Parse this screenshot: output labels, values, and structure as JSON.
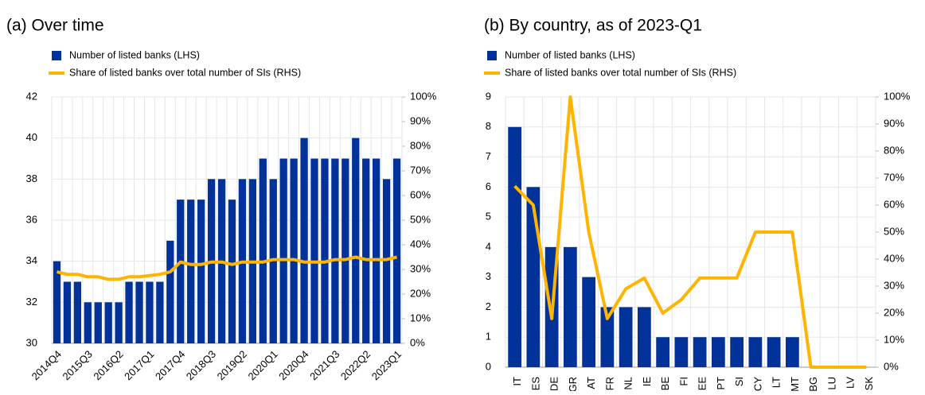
{
  "chart_data": [
    {
      "type": "combo",
      "title": "(a) Over time",
      "categories": [
        "2014Q4",
        null,
        null,
        "2015Q3",
        null,
        null,
        "2016Q2",
        null,
        null,
        "2017Q1",
        null,
        null,
        "2017Q4",
        null,
        null,
        "2018Q3",
        null,
        null,
        "2019Q2",
        null,
        null,
        "2020Q1",
        null,
        null,
        "2020Q4",
        null,
        null,
        "2021Q3",
        null,
        null,
        "2022Q2",
        null,
        null,
        "2023Q1"
      ],
      "series": [
        {
          "name": "Number of listed banks (LHS)",
          "type": "bar",
          "color": "#003299",
          "values": [
            34,
            33,
            33,
            32,
            32,
            32,
            32,
            33,
            33,
            33,
            33,
            35,
            37,
            37,
            37,
            38,
            38,
            37,
            38,
            38,
            39,
            38,
            39,
            39,
            40,
            39,
            39,
            39,
            39,
            40,
            39,
            39,
            38,
            39
          ]
        },
        {
          "name": "Share of listed banks over total number of SIs (RHS)",
          "type": "line",
          "axis": "y2",
          "color": "#FFB400",
          "values": [
            29,
            28,
            28,
            27,
            27,
            26,
            26,
            27,
            27,
            27.5,
            28,
            29,
            33,
            32,
            32,
            33,
            33,
            32,
            33,
            33,
            33,
            34,
            34,
            34,
            33,
            33,
            33,
            34,
            34,
            35,
            34,
            34,
            34,
            35
          ]
        }
      ],
      "ylim": [
        30,
        42
      ],
      "yticks": [
        30,
        32,
        34,
        36,
        38,
        40,
        42
      ],
      "y2lim": [
        0,
        100
      ],
      "y2ticks": [
        {
          "value": 0,
          "label": "0%"
        },
        {
          "value": 10,
          "label": "10%"
        },
        {
          "value": 20,
          "label": "20%"
        },
        {
          "value": 30,
          "label": "30%"
        },
        {
          "value": 40,
          "label": "40%"
        },
        {
          "value": 50,
          "label": "50%"
        },
        {
          "value": 60,
          "label": "60%"
        },
        {
          "value": 70,
          "label": "70%"
        },
        {
          "value": 80,
          "label": "80%"
        },
        {
          "value": 90,
          "label": "90%"
        },
        {
          "value": 100,
          "label": "100%"
        }
      ],
      "grid": true
    },
    {
      "type": "combo",
      "title": "(b) By country, as of 2023-Q1",
      "categories": [
        "IT",
        "ES",
        "DE",
        "GR",
        "AT",
        "FR",
        "NL",
        "IE",
        "BE",
        "FI",
        "EE",
        "PT",
        "SI",
        "CY",
        "LT",
        "MT",
        "BG",
        "LU",
        "LV",
        "SK"
      ],
      "series": [
        {
          "name": "Number of listed banks (LHS)",
          "type": "bar",
          "color": "#003299",
          "values": [
            8,
            6,
            4,
            4,
            3,
            2,
            2,
            2,
            1,
            1,
            1,
            1,
            1,
            1,
            1,
            1,
            0,
            0,
            0,
            0
          ]
        },
        {
          "name": "Share of listed banks over total number of SIs (RHS)",
          "type": "line",
          "axis": "y2",
          "color": "#FFB400",
          "values": [
            67,
            60,
            18,
            100,
            50,
            18,
            29,
            33,
            20,
            25,
            33,
            33,
            33,
            50,
            50,
            50,
            0,
            0,
            0,
            0
          ]
        }
      ],
      "ylim": [
        0,
        9
      ],
      "yticks": [
        0,
        1,
        2,
        3,
        4,
        5,
        6,
        7,
        8,
        9
      ],
      "y2lim": [
        0,
        100
      ],
      "y2ticks": [
        {
          "value": 0,
          "label": "0%"
        },
        {
          "value": 10,
          "label": "10%"
        },
        {
          "value": 20,
          "label": "20%"
        },
        {
          "value": 30,
          "label": "30%"
        },
        {
          "value": 40,
          "label": "40%"
        },
        {
          "value": 50,
          "label": "50%"
        },
        {
          "value": 60,
          "label": "60%"
        },
        {
          "value": 70,
          "label": "70%"
        },
        {
          "value": 80,
          "label": "80%"
        },
        {
          "value": 90,
          "label": "90%"
        },
        {
          "value": 100,
          "label": "100%"
        }
      ],
      "grid": true
    }
  ]
}
